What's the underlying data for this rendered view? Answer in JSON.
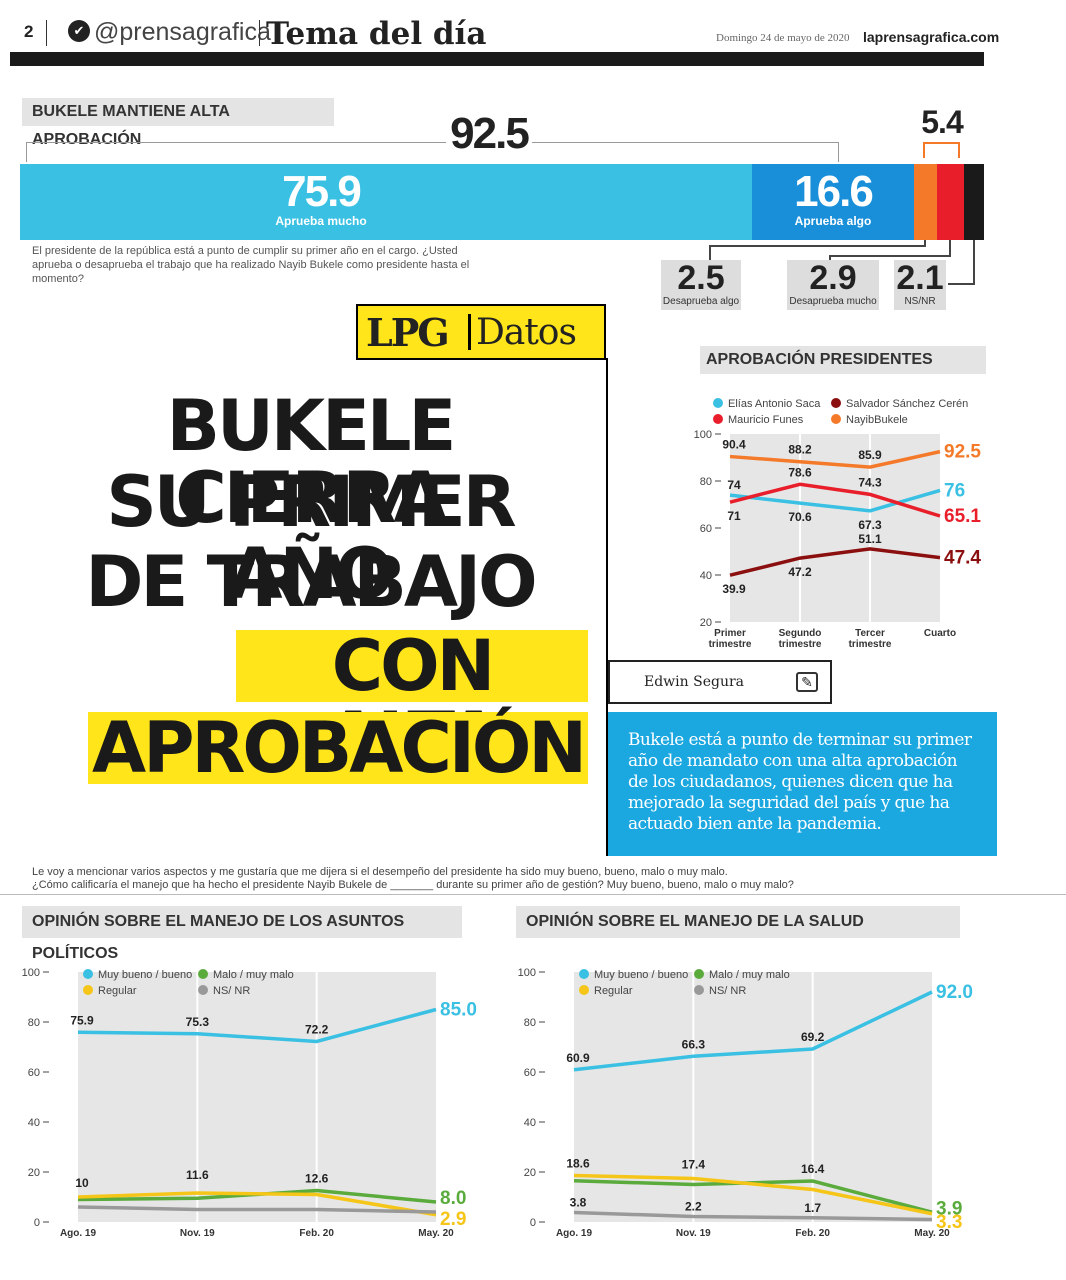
{
  "masthead": {
    "page_number": "2",
    "handle": "@prensagrafica",
    "section": "Tema del día",
    "date": "Domingo 24 de mayo de 2020",
    "site": "laprensagrafica.com"
  },
  "approval": {
    "title": "BUKELE MANTIENE ALTA APROBACIÓN",
    "total_approve": "92.5",
    "total_disapprove": "5.4",
    "segments": [
      {
        "value": "75.9",
        "label": "Aprueba mucho",
        "color": "#3ac0e3"
      },
      {
        "value": "16.6",
        "label": "Aprueba algo",
        "color": "#1a8fd9"
      },
      {
        "value": "2.5",
        "label": "Desaprueba algo",
        "color": "#f47a2a"
      },
      {
        "value": "2.9",
        "label": "Desaprueba mucho",
        "color": "#e81f2a"
      },
      {
        "value": "2.1",
        "label": "NS/NR",
        "color": "#1a1a1a"
      }
    ],
    "question": "El presidente de la república está a punto de cumplir su primer año en el cargo. ¿Usted aprueba o desaprueba el trabajo que ha realizado Nayib Bukele como presidente hasta el momento?"
  },
  "brand": {
    "lpg": "LPG",
    "datos": "Datos"
  },
  "headline": {
    "line1": "BUKELE CIERRA",
    "line2": "SU PRIMER AÑO",
    "line3": "DE TRABAJO",
    "line4": "CON ALTA",
    "line5": "APROBACIÓN"
  },
  "author": "Edwin Segura",
  "summary": "Bukele está a punto de terminar su primer año de mandato con una alta aprobación de los ciudadanos, quienes dicen que ha mejorado la seguridad del país y que ha actuado bien ante la pandemia.",
  "bottom_question": {
    "line1": "Le voy a mencionar varios aspectos y me gustaría que me dijera si el desempeño del presidente ha sido muy bueno, bueno, malo o muy malo.",
    "line2": "¿Cómo calificaría el manejo que ha hecho el presidente  Nayib Bukele de _______ durante su primer año de gestión? Muy bueno, bueno, malo o muy malo?"
  },
  "colors": {
    "cyan": "#3ac0e3",
    "blue": "#1a8fd9",
    "yellow": "#ffe51a",
    "orange": "#f47a2a",
    "red": "#e81f2a",
    "darkred": "#8b0f0f",
    "green": "#5aab3c",
    "gold": "#f5c518",
    "gray": "#999999"
  },
  "chart_data": [
    {
      "type": "line",
      "title": "APROBACIÓN PRESIDENTES",
      "categories": [
        "Primer trimestre",
        "Segundo trimestre",
        "Tercer trimestre",
        "Cuarto"
      ],
      "ylim": [
        20,
        100
      ],
      "yticks": [
        "100",
        "80",
        "60",
        "40",
        "20"
      ],
      "series": [
        {
          "name": "Elías Antonio Saca",
          "color": "#3ac0e3",
          "values": [
            74,
            70.6,
            67.3,
            76
          ],
          "labels": [
            "74",
            "70.6",
            "67.3",
            "76"
          ]
        },
        {
          "name": "Salvador Sánchez Cerén",
          "color": "#8b0f0f",
          "values": [
            39.9,
            47.2,
            51.1,
            47.4
          ],
          "labels": [
            "39.9",
            "47.2",
            "51.1",
            "47.4"
          ]
        },
        {
          "name": "Mauricio Funes",
          "color": "#e81f2a",
          "values": [
            71,
            78.6,
            74.3,
            65.1
          ],
          "labels": [
            "71",
            "78.6",
            "74.3",
            "65.1"
          ]
        },
        {
          "name": "NayibBukele",
          "color": "#f47a2a",
          "values": [
            90.4,
            88.2,
            85.9,
            92.5
          ],
          "labels": [
            "90.4",
            "88.2",
            "85.9",
            "92.5"
          ]
        }
      ]
    },
    {
      "type": "line",
      "title": "OPINIÓN SOBRE EL MANEJO DE LOS ASUNTOS POLÍTICOS",
      "categories": [
        "Ago. 19",
        "Nov. 19",
        "Feb. 20",
        "May. 20"
      ],
      "ylim": [
        0,
        100
      ],
      "yticks": [
        "100",
        "80",
        "60",
        "40",
        "20",
        "0"
      ],
      "series": [
        {
          "name": "Muy bueno / bueno",
          "color": "#3ac0e3",
          "values": [
            75.9,
            75.3,
            72.2,
            85.0
          ],
          "labels": [
            "75.9",
            "75.3",
            "72.2",
            "85.0"
          ]
        },
        {
          "name": "Malo / muy malo",
          "color": "#5aab3c",
          "values": [
            9,
            9.5,
            12.6,
            8.0
          ],
          "labels": [
            "",
            "",
            "12.6",
            "8.0"
          ]
        },
        {
          "name": "Regular",
          "color": "#f5c518",
          "values": [
            10,
            11.6,
            11,
            2.9
          ],
          "labels": [
            "10",
            "11.6",
            "",
            "2.9"
          ]
        },
        {
          "name": "NS/ NR",
          "color": "#999999",
          "values": [
            6,
            5,
            5,
            4
          ],
          "labels": [
            "",
            "",
            "",
            ""
          ]
        }
      ]
    },
    {
      "type": "line",
      "title": "OPINIÓN SOBRE EL MANEJO DE LA SALUD",
      "categories": [
        "Ago. 19",
        "Nov. 19",
        "Feb. 20",
        "May. 20"
      ],
      "ylim": [
        0,
        100
      ],
      "yticks": [
        "100",
        "80",
        "60",
        "40",
        "20",
        "0"
      ],
      "series": [
        {
          "name": "Muy bueno / bueno",
          "color": "#3ac0e3",
          "values": [
            60.9,
            66.3,
            69.2,
            92.0
          ],
          "labels": [
            "60.9",
            "66.3",
            "69.2",
            "92.0"
          ]
        },
        {
          "name": "Malo / muy malo",
          "color": "#5aab3c",
          "values": [
            16.5,
            15,
            16.4,
            3.9
          ],
          "labels": [
            "",
            "",
            "16.4",
            "3.9"
          ]
        },
        {
          "name": "Regular",
          "color": "#f5c518",
          "values": [
            18.6,
            17.4,
            13,
            3.3
          ],
          "labels": [
            "18.6",
            "17.4",
            "",
            "3.3"
          ]
        },
        {
          "name": "NS/ NR",
          "color": "#999999",
          "values": [
            3.8,
            2.2,
            1.7,
            1
          ],
          "labels": [
            "3.8",
            "2.2",
            "1.7",
            ""
          ]
        }
      ]
    }
  ]
}
